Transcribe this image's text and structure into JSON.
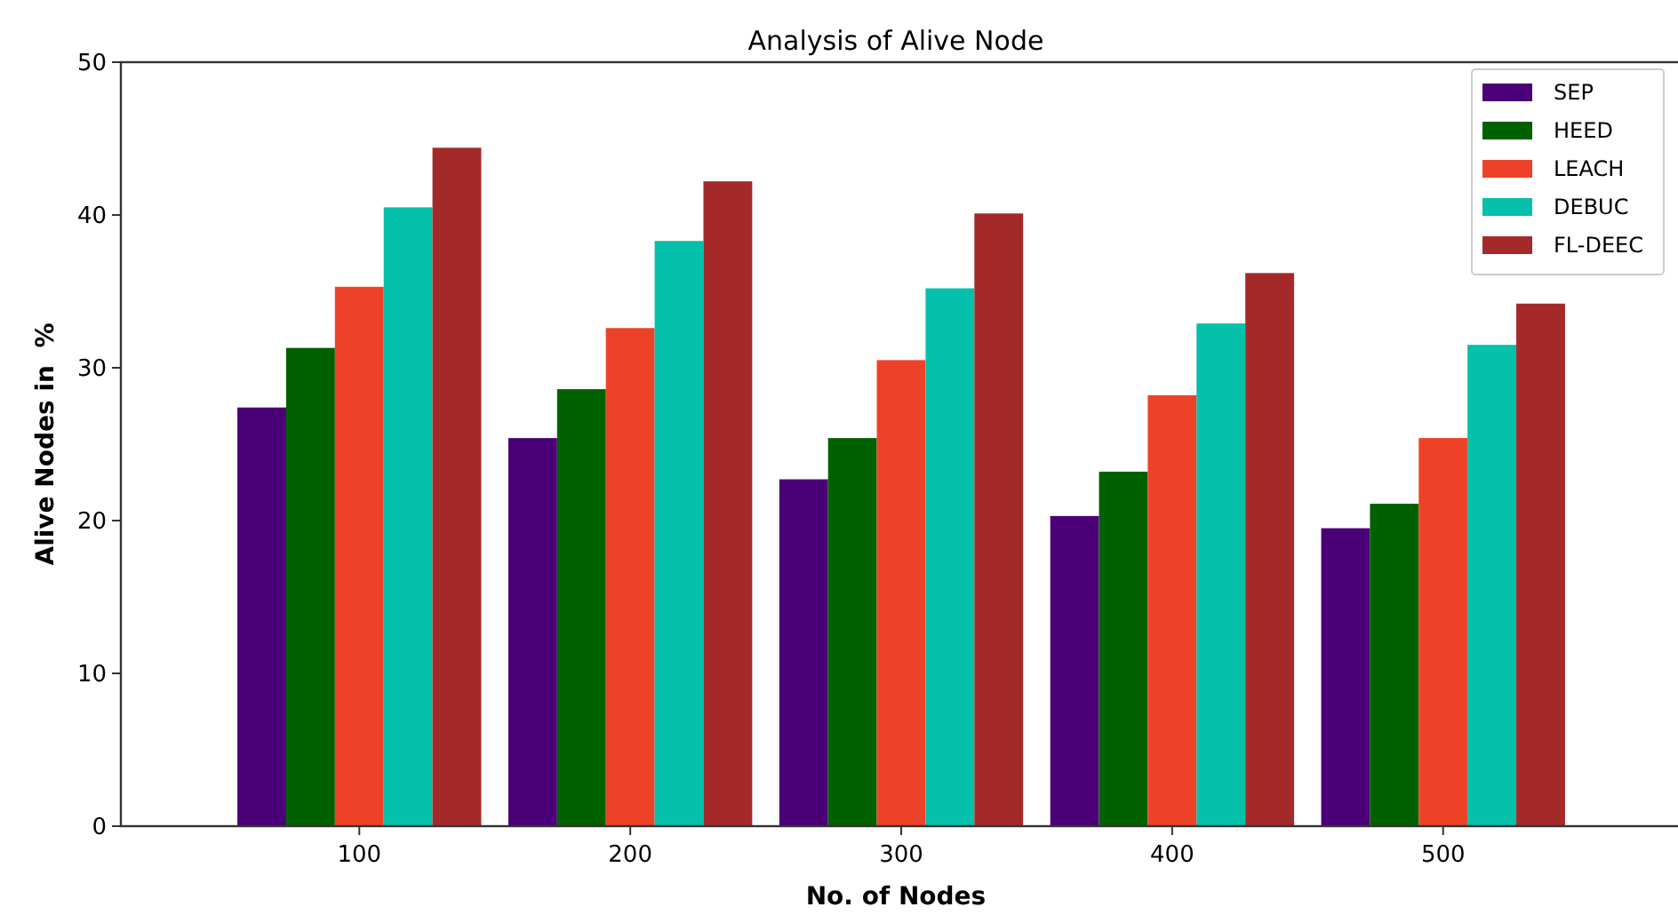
{
  "chart_data": {
    "type": "bar",
    "title": "Analysis of Alive Node",
    "xlabel": "No. of Nodes",
    "ylabel": "Alive Nodes in  %",
    "categories": [
      "100",
      "200",
      "300",
      "400",
      "500"
    ],
    "series": [
      {
        "name": "SEP",
        "color": "#4b0078",
        "values": [
          27.4,
          25.4,
          22.7,
          20.3,
          19.5
        ]
      },
      {
        "name": "HEED",
        "color": "#006100",
        "values": [
          31.3,
          28.6,
          25.4,
          23.2,
          21.1
        ]
      },
      {
        "name": "LEACH",
        "color": "#ee4228",
        "values": [
          35.3,
          32.6,
          30.5,
          28.2,
          25.4
        ]
      },
      {
        "name": "DEBUC",
        "color": "#05c0aa",
        "values": [
          40.5,
          38.3,
          35.2,
          32.9,
          31.5
        ]
      },
      {
        "name": "FL-DEEC",
        "color": "#a42a2a",
        "values": [
          44.4,
          42.2,
          40.1,
          36.2,
          34.2
        ]
      }
    ],
    "ylim": [
      0,
      50
    ],
    "yticks": [
      0,
      10,
      20,
      30,
      40,
      50
    ],
    "legend": "top right"
  }
}
